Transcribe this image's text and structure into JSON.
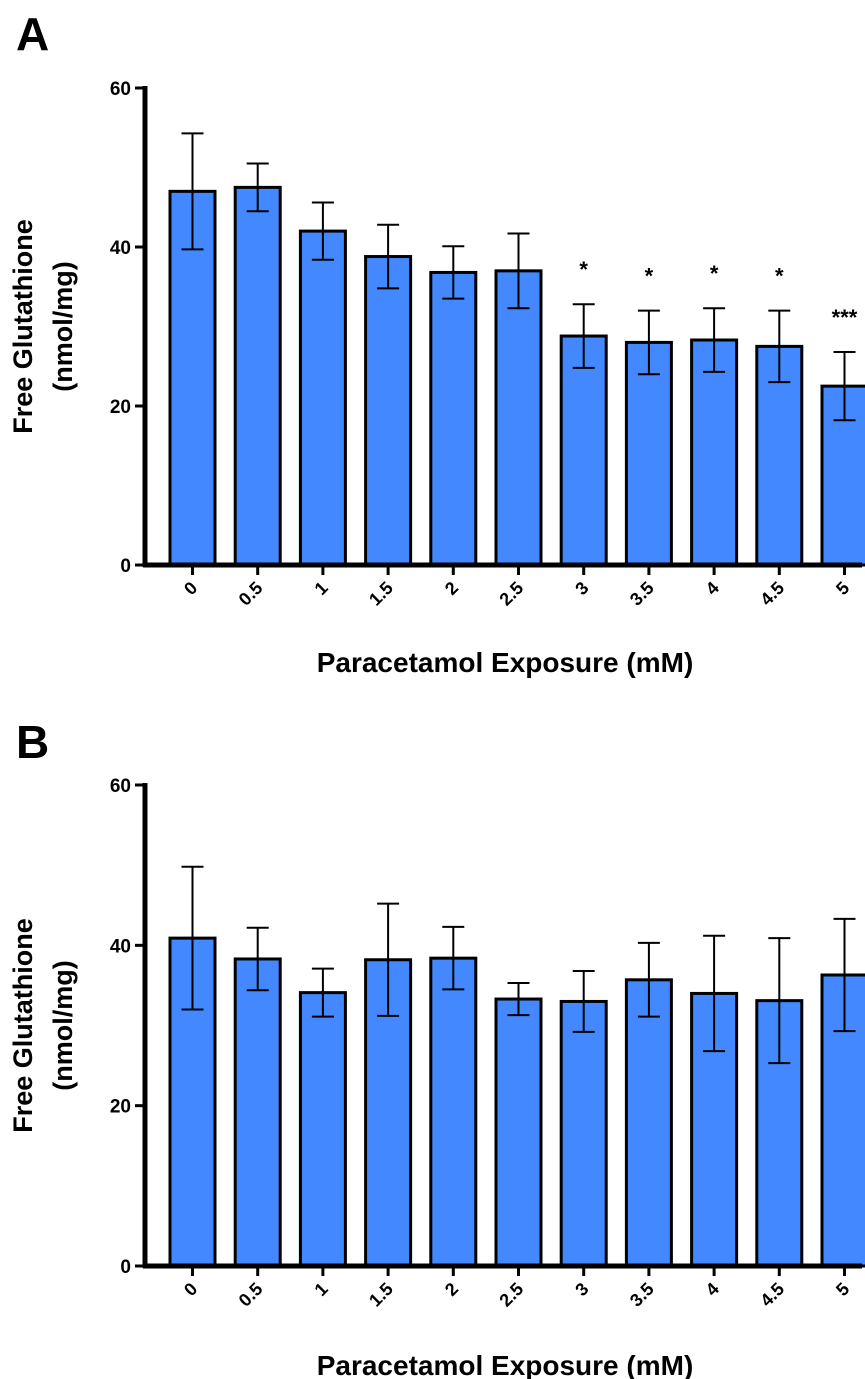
{
  "chart_data": [
    {
      "panel_label": "A",
      "type": "bar",
      "categories": [
        "0",
        "0.5",
        "1",
        "1.5",
        "2",
        "2.5",
        "3",
        "3.5",
        "4",
        "4.5",
        "5"
      ],
      "values": [
        47.0,
        47.5,
        42.0,
        38.8,
        36.8,
        37.0,
        28.8,
        28.0,
        28.3,
        27.5,
        22.5
      ],
      "errors": [
        7.3,
        3.0,
        3.6,
        4.0,
        3.3,
        4.7,
        4.0,
        4.0,
        4.0,
        4.5,
        4.3
      ],
      "significance": [
        "",
        "",
        "",
        "",
        "",
        "",
        "*",
        "*",
        "*",
        "*",
        "***"
      ],
      "xlabel": "Paracetamol Exposure (mM)",
      "ylabel_line1": "Free Glutathione",
      "ylabel_line2": "(nmol/mg)",
      "ylim": [
        0,
        60
      ],
      "yticks": [
        0,
        20,
        40,
        60
      ],
      "bar_color": "#4488ff",
      "grid": false
    },
    {
      "panel_label": "B",
      "type": "bar",
      "categories": [
        "0",
        "0.5",
        "1",
        "1.5",
        "2",
        "2.5",
        "3",
        "3.5",
        "4",
        "4.5",
        "5"
      ],
      "values": [
        40.9,
        38.3,
        34.1,
        38.2,
        38.4,
        33.3,
        33.0,
        35.7,
        34.0,
        33.1,
        36.3
      ],
      "errors": [
        8.9,
        3.9,
        3.0,
        7.0,
        3.9,
        2.0,
        3.8,
        4.6,
        7.2,
        7.8,
        7.0
      ],
      "significance": [
        "",
        "",
        "",
        "",
        "",
        "",
        "",
        "",
        "",
        "",
        ""
      ],
      "xlabel": "Paracetamol Exposure (mM)",
      "ylabel_line1": "Free Glutathione",
      "ylabel_line2": "(nmol/mg)",
      "ylim": [
        0,
        60
      ],
      "yticks": [
        0,
        20,
        40,
        60
      ],
      "bar_color": "#4488ff",
      "grid": false
    }
  ]
}
